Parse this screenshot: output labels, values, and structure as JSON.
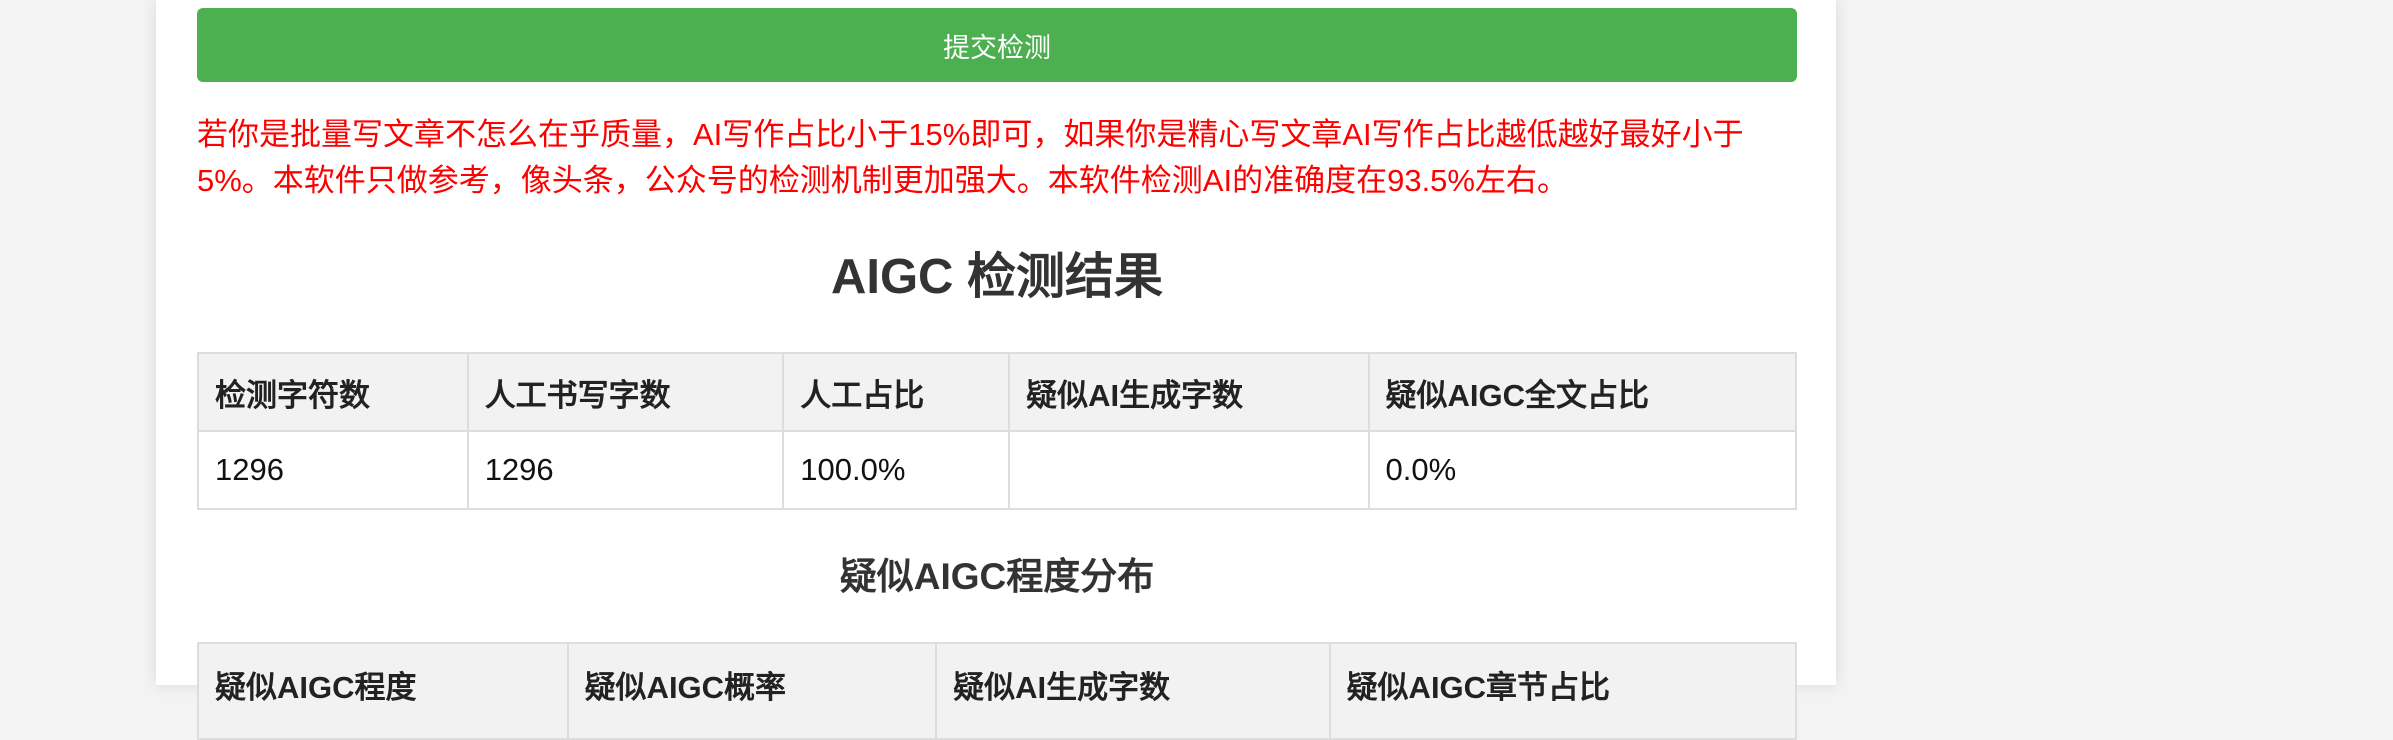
{
  "form": {
    "submit_label": "提交检测"
  },
  "notice": {
    "text": "若你是批量写文章不怎么在乎质量，AI写作占比小于15%即可，如果你是精心写文章AI写作占比越低越好最好小于5%。本软件只做参考，像头条，公众号的检测机制更加强大。本软件检测AI的准确度在93.5%左右。",
    "color": "#ff0000"
  },
  "result": {
    "title": "AIGC 检测结果",
    "headers": [
      "检测字符数",
      "人工书写字数",
      "人工占比",
      "疑似AI生成字数",
      "疑似AIGC全文占比"
    ],
    "row": [
      "1296",
      "1296",
      "100.0%",
      "",
      "0.0%"
    ]
  },
  "distribution": {
    "title": "疑似AIGC程度分布",
    "headers": [
      "疑似AIGC程度",
      "疑似AIGC概率",
      "疑似AI生成字数",
      "疑似AIGC章节占比"
    ]
  },
  "colors": {
    "accent": "#4caf50",
    "page_bg": "#f3f3f3",
    "card_bg": "#ffffff",
    "header_bg": "#f2f2f2",
    "border": "#dddddd"
  }
}
